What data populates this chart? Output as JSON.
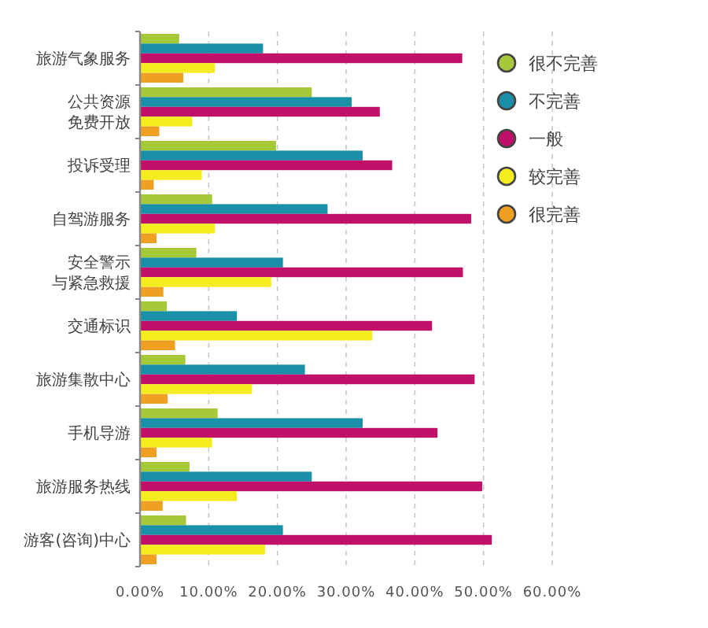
{
  "chart_data": {
    "type": "bar",
    "orientation": "horizontal",
    "categories": [
      "旅游气象服务",
      "公共资源免费开放",
      "投诉受理",
      "自驾游服务",
      "安全警示与紧急救援",
      "交通标识",
      "旅游集散中心",
      "手机导游",
      "旅游服务热线",
      "游客(咨询)中心"
    ],
    "series": [
      {
        "name": "很不完善",
        "color": "#a6c93a",
        "values": [
          5.7,
          25.0,
          19.8,
          10.5,
          8.2,
          3.9,
          6.6,
          11.3,
          7.2,
          6.7
        ]
      },
      {
        "name": "不完善",
        "color": "#1a8fa8",
        "values": [
          17.9,
          30.8,
          32.4,
          27.3,
          20.8,
          14.1,
          24.0,
          32.4,
          25.0,
          20.8
        ]
      },
      {
        "name": "一般",
        "color": "#c0106a",
        "values": [
          46.9,
          34.9,
          36.7,
          48.2,
          47.0,
          42.5,
          48.7,
          43.3,
          49.8,
          51.2
        ]
      },
      {
        "name": "较完善",
        "color": "#f5ec20",
        "values": [
          10.9,
          7.6,
          9.0,
          10.9,
          19.1,
          33.8,
          16.3,
          10.5,
          14.1,
          18.2
        ]
      },
      {
        "name": "很完善",
        "color": "#f0a020",
        "values": [
          6.3,
          2.8,
          2.0,
          2.4,
          3.4,
          5.1,
          4.0,
          2.4,
          3.3,
          2.4
        ]
      }
    ],
    "xlim": [
      0,
      60
    ],
    "xticks": [
      {
        "value": 0,
        "label": "0.00%"
      },
      {
        "value": 10,
        "label": "10.00%"
      },
      {
        "value": 20,
        "label": "20.00%"
      },
      {
        "value": 30,
        "label": "30.00%"
      },
      {
        "value": 40,
        "label": "40.00%"
      },
      {
        "value": 50,
        "label": "50.00%"
      },
      {
        "value": 60,
        "label": "60.00%"
      }
    ],
    "grid": "x",
    "legend": "top right"
  }
}
